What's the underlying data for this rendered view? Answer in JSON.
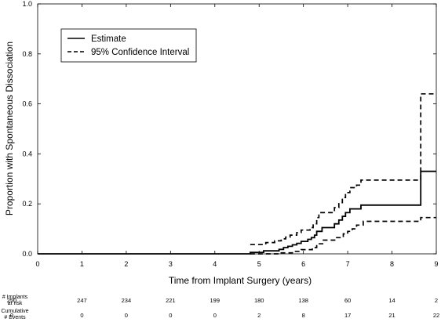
{
  "chart_data": {
    "type": "line",
    "xlabel": "Time from Implant Surgery (years)",
    "ylabel": "Proportion with Spontaneous Dissociation",
    "xlim": [
      0,
      9
    ],
    "ylim": [
      0,
      1
    ],
    "x_ticks": [
      "0",
      "1",
      "2",
      "3",
      "4",
      "5",
      "6",
      "7",
      "8",
      "9"
    ],
    "y_ticks": [
      "0.0",
      "0.2",
      "0.4",
      "0.6",
      "0.8",
      "1.0"
    ],
    "grid": false,
    "legend_position": "top-left",
    "legend": [
      "Estimate",
      "95% Confidence Interval"
    ],
    "series": [
      {
        "name": "Estimate",
        "style": "solid",
        "points": [
          [
            0,
            0
          ],
          [
            4.8,
            0
          ],
          [
            4.8,
            0.006
          ],
          [
            5.1,
            0.006
          ],
          [
            5.1,
            0.012
          ],
          [
            5.45,
            0.012
          ],
          [
            5.45,
            0.018
          ],
          [
            5.55,
            0.018
          ],
          [
            5.55,
            0.025
          ],
          [
            5.65,
            0.025
          ],
          [
            5.65,
            0.03
          ],
          [
            5.75,
            0.03
          ],
          [
            5.75,
            0.036
          ],
          [
            5.85,
            0.036
          ],
          [
            5.85,
            0.042
          ],
          [
            5.95,
            0.042
          ],
          [
            5.95,
            0.05
          ],
          [
            6.1,
            0.05
          ],
          [
            6.1,
            0.058
          ],
          [
            6.18,
            0.058
          ],
          [
            6.18,
            0.065
          ],
          [
            6.25,
            0.065
          ],
          [
            6.25,
            0.075
          ],
          [
            6.3,
            0.075
          ],
          [
            6.3,
            0.09
          ],
          [
            6.42,
            0.09
          ],
          [
            6.42,
            0.105
          ],
          [
            6.7,
            0.105
          ],
          [
            6.7,
            0.12
          ],
          [
            6.8,
            0.12
          ],
          [
            6.8,
            0.135
          ],
          [
            6.88,
            0.135
          ],
          [
            6.88,
            0.15
          ],
          [
            6.95,
            0.15
          ],
          [
            6.95,
            0.165
          ],
          [
            7.05,
            0.165
          ],
          [
            7.05,
            0.18
          ],
          [
            7.3,
            0.18
          ],
          [
            7.3,
            0.195
          ],
          [
            8.65,
            0.195
          ],
          [
            8.65,
            0.33
          ],
          [
            9,
            0.33
          ]
        ]
      },
      {
        "name": "95% Confidence Interval",
        "style": "dashed",
        "points": [
          [
            4.8,
            0.037
          ],
          [
            5.15,
            0.037
          ],
          [
            5.15,
            0.045
          ],
          [
            5.35,
            0.045
          ],
          [
            5.35,
            0.052
          ],
          [
            5.5,
            0.052
          ],
          [
            5.5,
            0.06
          ],
          [
            5.6,
            0.06
          ],
          [
            5.6,
            0.067
          ],
          [
            5.7,
            0.067
          ],
          [
            5.7,
            0.075
          ],
          [
            5.85,
            0.075
          ],
          [
            5.85,
            0.085
          ],
          [
            5.95,
            0.085
          ],
          [
            5.95,
            0.095
          ],
          [
            6.15,
            0.095
          ],
          [
            6.15,
            0.105
          ],
          [
            6.22,
            0.105
          ],
          [
            6.22,
            0.12
          ],
          [
            6.3,
            0.12
          ],
          [
            6.3,
            0.145
          ],
          [
            6.35,
            0.145
          ],
          [
            6.35,
            0.165
          ],
          [
            6.7,
            0.165
          ],
          [
            6.7,
            0.185
          ],
          [
            6.8,
            0.185
          ],
          [
            6.8,
            0.205
          ],
          [
            6.88,
            0.205
          ],
          [
            6.88,
            0.225
          ],
          [
            6.95,
            0.225
          ],
          [
            6.95,
            0.245
          ],
          [
            7.05,
            0.245
          ],
          [
            7.05,
            0.265
          ],
          [
            7.2,
            0.265
          ],
          [
            7.2,
            0.275
          ],
          [
            7.3,
            0.275
          ],
          [
            7.3,
            0.295
          ],
          [
            8.65,
            0.295
          ],
          [
            8.65,
            0.64
          ],
          [
            9,
            0.64
          ]
        ]
      },
      {
        "name": "95% Confidence Interval",
        "style": "dashed",
        "points": [
          [
            4.8,
            0
          ],
          [
            5.5,
            0
          ],
          [
            5.5,
            0.004
          ],
          [
            5.75,
            0.004
          ],
          [
            5.75,
            0.01
          ],
          [
            5.95,
            0.01
          ],
          [
            5.95,
            0.017
          ],
          [
            6.2,
            0.017
          ],
          [
            6.2,
            0.025
          ],
          [
            6.3,
            0.025
          ],
          [
            6.3,
            0.04
          ],
          [
            6.45,
            0.04
          ],
          [
            6.45,
            0.055
          ],
          [
            6.75,
            0.055
          ],
          [
            6.75,
            0.065
          ],
          [
            6.9,
            0.065
          ],
          [
            6.9,
            0.08
          ],
          [
            7,
            0.08
          ],
          [
            7,
            0.09
          ],
          [
            7.1,
            0.09
          ],
          [
            7.1,
            0.1
          ],
          [
            7.2,
            0.1
          ],
          [
            7.2,
            0.115
          ],
          [
            7.35,
            0.115
          ],
          [
            7.35,
            0.13
          ],
          [
            8.65,
            0.13
          ],
          [
            8.65,
            0.145
          ],
          [
            9,
            0.145
          ]
        ]
      }
    ]
  },
  "risk_table": {
    "rows": [
      {
        "label_line1": "# Implants",
        "label_line2": "at risk",
        "values": [
          "250",
          "247",
          "234",
          "221",
          "199",
          "180",
          "138",
          "60",
          "14",
          "2"
        ]
      },
      {
        "label_line1": "Cumulative",
        "label_line2": "# Events",
        "values": [
          "0",
          "0",
          "0",
          "0",
          "0",
          "2",
          "8",
          "17",
          "21",
          "22"
        ]
      }
    ]
  }
}
